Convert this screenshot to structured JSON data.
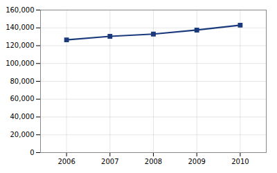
{
  "chart_data": {
    "type": "line",
    "x": [
      2006,
      2007,
      2008,
      2009,
      2010
    ],
    "values": [
      126500,
      130500,
      133000,
      137500,
      143000
    ],
    "color": "#1a3a7c",
    "marker": "square",
    "xlim": [
      2005.4,
      2010.6
    ],
    "xticks": [
      2006,
      2007,
      2008,
      2009,
      2010
    ],
    "ylim": [
      0,
      160000
    ],
    "yticks": [
      0,
      {
        "value": 20000,
        "label": "20,000"
      },
      {
        "value": 40000,
        "label": "40,000"
      },
      {
        "value": 60000,
        "label": "60,000"
      },
      {
        "value": 80000,
        "label": "80,000"
      },
      {
        "value": 100000,
        "label": "100,000"
      },
      {
        "value": 120000,
        "label": "120,000"
      },
      {
        "value": 140000,
        "label": "140,000"
      },
      {
        "value": 160000,
        "label": "160,000"
      }
    ],
    "grid": true
  }
}
